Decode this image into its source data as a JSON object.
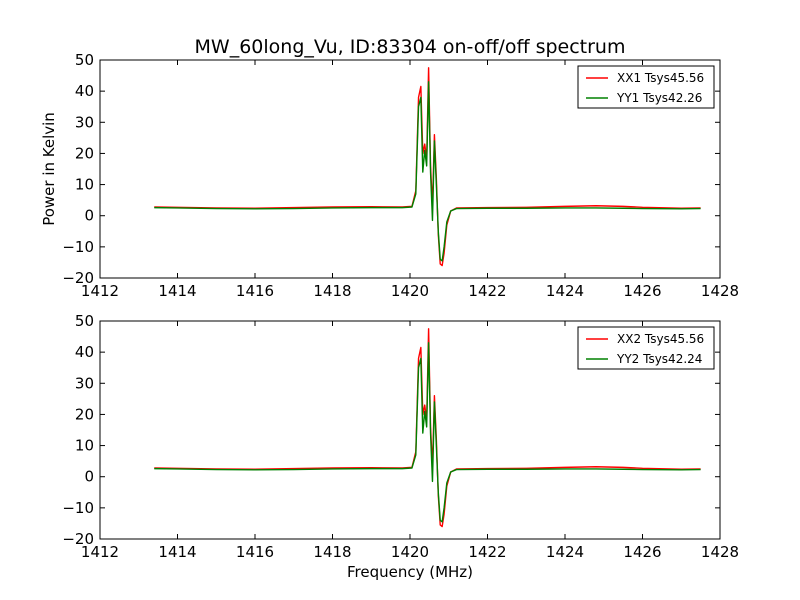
{
  "chart_data": [
    {
      "type": "line",
      "title": "MW_60long_Vu, ID:83304 on-off/off spectrum",
      "xlabel": "",
      "ylabel": "Power in Kelvin",
      "xlim": [
        1412,
        1428
      ],
      "ylim": [
        -20,
        50
      ],
      "xticks": [
        "1412",
        "1414",
        "1416",
        "1418",
        "1420",
        "1422",
        "1424",
        "1426",
        "1428"
      ],
      "yticks": [
        "−20",
        "−10",
        "0",
        "10",
        "20",
        "30",
        "40",
        "50"
      ],
      "legend_position": "top-right",
      "grid": false,
      "series": [
        {
          "name": "XX1 Tsys45.56",
          "color": "#ff0000",
          "x": [
            1413.4,
            1414.0,
            1415.0,
            1416.0,
            1417.0,
            1418.0,
            1419.0,
            1419.8,
            1420.05,
            1420.15,
            1420.22,
            1420.28,
            1420.33,
            1420.38,
            1420.43,
            1420.48,
            1420.53,
            1420.58,
            1420.63,
            1420.68,
            1420.73,
            1420.78,
            1420.83,
            1420.88,
            1420.95,
            1421.05,
            1421.2,
            1422.0,
            1423.0,
            1424.0,
            1424.8,
            1425.5,
            1426.0,
            1427.0,
            1427.5
          ],
          "y": [
            2.8,
            2.7,
            2.5,
            2.4,
            2.6,
            2.8,
            2.9,
            2.8,
            3.0,
            8.0,
            38.0,
            41.5,
            20.0,
            23.0,
            18.0,
            47.5,
            16.0,
            3.0,
            26.0,
            12.0,
            -6.0,
            -15.5,
            -16.0,
            -12.0,
            -3.0,
            1.5,
            2.5,
            2.6,
            2.7,
            3.0,
            3.2,
            3.0,
            2.7,
            2.4,
            2.5
          ]
        },
        {
          "name": "YY1 Tsys42.26",
          "color": "#008000",
          "x": [
            1413.4,
            1414.0,
            1415.0,
            1416.0,
            1417.0,
            1418.0,
            1419.0,
            1419.8,
            1420.05,
            1420.15,
            1420.22,
            1420.28,
            1420.33,
            1420.38,
            1420.43,
            1420.48,
            1420.53,
            1420.58,
            1420.63,
            1420.68,
            1420.73,
            1420.78,
            1420.83,
            1420.88,
            1420.95,
            1421.05,
            1421.2,
            1422.0,
            1423.0,
            1424.0,
            1424.8,
            1425.5,
            1426.0,
            1427.0,
            1427.5
          ],
          "y": [
            2.6,
            2.5,
            2.3,
            2.2,
            2.3,
            2.5,
            2.6,
            2.6,
            2.8,
            7.0,
            35.0,
            38.0,
            14.0,
            21.0,
            16.0,
            43.0,
            14.0,
            -1.5,
            24.0,
            10.0,
            -5.0,
            -14.0,
            -14.5,
            -10.0,
            -2.0,
            1.5,
            2.3,
            2.4,
            2.4,
            2.5,
            2.5,
            2.4,
            2.3,
            2.2,
            2.3
          ]
        }
      ]
    },
    {
      "type": "line",
      "title": "",
      "xlabel": "Frequency (MHz)",
      "ylabel": "",
      "xlim": [
        1412,
        1428
      ],
      "ylim": [
        -20,
        50
      ],
      "xticks": [
        "1412",
        "1414",
        "1416",
        "1418",
        "1420",
        "1422",
        "1424",
        "1426",
        "1428"
      ],
      "yticks": [
        "−20",
        "−10",
        "0",
        "10",
        "20",
        "30",
        "40",
        "50"
      ],
      "legend_position": "top-right",
      "grid": false,
      "series": [
        {
          "name": "XX2 Tsys45.56",
          "color": "#ff0000",
          "x": [
            1413.4,
            1414.0,
            1415.0,
            1416.0,
            1417.0,
            1418.0,
            1419.0,
            1419.8,
            1420.05,
            1420.15,
            1420.22,
            1420.28,
            1420.33,
            1420.38,
            1420.43,
            1420.48,
            1420.53,
            1420.58,
            1420.63,
            1420.68,
            1420.73,
            1420.78,
            1420.83,
            1420.88,
            1420.95,
            1421.05,
            1421.2,
            1422.0,
            1423.0,
            1424.0,
            1424.8,
            1425.5,
            1426.0,
            1427.0,
            1427.5
          ],
          "y": [
            2.8,
            2.7,
            2.5,
            2.4,
            2.6,
            2.8,
            2.9,
            2.8,
            3.0,
            8.0,
            38.0,
            41.5,
            20.0,
            23.0,
            18.0,
            47.5,
            16.0,
            3.0,
            26.0,
            12.0,
            -6.0,
            -15.5,
            -16.0,
            -12.0,
            -3.0,
            1.5,
            2.5,
            2.6,
            2.7,
            3.0,
            3.2,
            3.0,
            2.7,
            2.4,
            2.5
          ]
        },
        {
          "name": "YY2 Tsys42.24",
          "color": "#008000",
          "x": [
            1413.4,
            1414.0,
            1415.0,
            1416.0,
            1417.0,
            1418.0,
            1419.0,
            1419.8,
            1420.05,
            1420.15,
            1420.22,
            1420.28,
            1420.33,
            1420.38,
            1420.43,
            1420.48,
            1420.53,
            1420.58,
            1420.63,
            1420.68,
            1420.73,
            1420.78,
            1420.83,
            1420.88,
            1420.95,
            1421.05,
            1421.2,
            1422.0,
            1423.0,
            1424.0,
            1424.8,
            1425.5,
            1426.0,
            1427.0,
            1427.5
          ],
          "y": [
            2.6,
            2.5,
            2.3,
            2.2,
            2.3,
            2.5,
            2.6,
            2.6,
            2.8,
            7.0,
            35.0,
            38.0,
            14.0,
            21.0,
            16.0,
            43.0,
            14.0,
            -1.5,
            24.0,
            10.0,
            -5.0,
            -14.0,
            -14.5,
            -10.0,
            -2.0,
            1.5,
            2.3,
            2.4,
            2.4,
            2.5,
            2.5,
            2.4,
            2.3,
            2.2,
            2.3
          ]
        }
      ]
    }
  ]
}
